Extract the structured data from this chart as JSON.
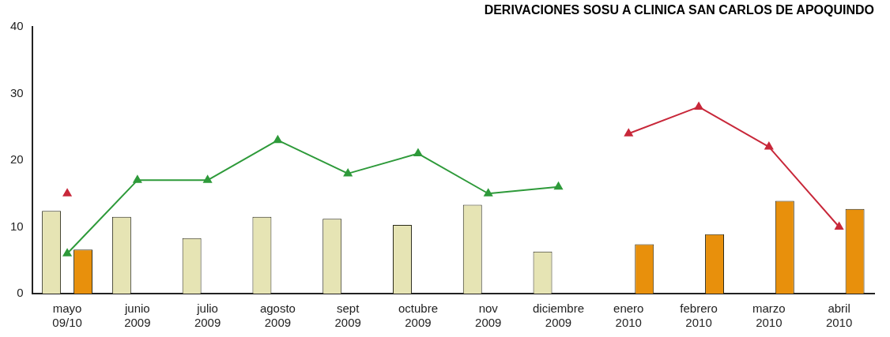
{
  "chart_data": {
    "type": "bar",
    "title": "DERIVACIONES SOSU A CLINICA SAN CARLOS DE APOQUINDO",
    "categories": [
      "mayo 09/10",
      "junio 2009",
      "julio 2009",
      "agosto 2009",
      "sept 2009",
      "octubre 2009",
      "nov 2009",
      "diciembre 2009",
      "enero 2010",
      "febrero 2010",
      "marzo 2010",
      "abril 2010"
    ],
    "series": [
      {
        "color": "#e6e4b4",
        "values": [
          12.4,
          11.5,
          8.3,
          11.5,
          11.2,
          10.3,
          13.3,
          6.3,
          null,
          null,
          null,
          null
        ]
      },
      {
        "color": "#e8900c",
        "values": [
          6.6,
          null,
          null,
          null,
          null,
          null,
          null,
          null,
          7.4,
          8.9,
          13.9,
          12.7
        ]
      },
      {
        "type": "line",
        "color": "#2e9a3a",
        "values": [
          6,
          17,
          17,
          23,
          18,
          21,
          15,
          16,
          null,
          null,
          null,
          null
        ]
      },
      {
        "type": "line",
        "color": "#c8283a",
        "values": [
          15,
          null,
          null,
          null,
          null,
          null,
          null,
          null,
          24,
          28,
          22,
          10
        ]
      }
    ],
    "ylim": [
      0,
      40
    ],
    "yticks": [
      0,
      10,
      20,
      30,
      40
    ],
    "grid": false,
    "legend": false,
    "marker": "triangle"
  }
}
